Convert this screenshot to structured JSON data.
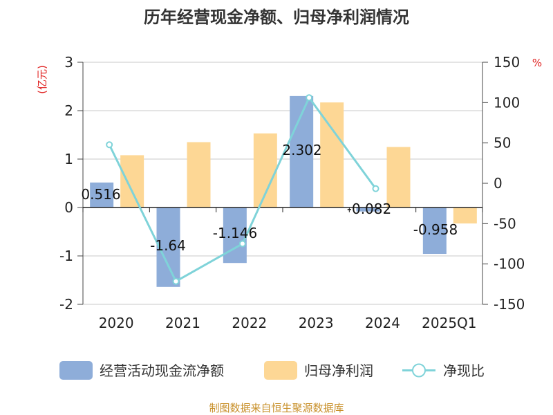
{
  "colors": {
    "bar1": "#8eadd9",
    "bar2": "#fdd795",
    "line": "#7fd3d9",
    "unit": "#e0201f",
    "source": "#c8902a"
  },
  "chart_data": {
    "type": "bar",
    "title": "历年经营现金净额、归母净利润情况",
    "ylabel_left": "(亿元)",
    "ylabel_right": "%",
    "categories": [
      "2020",
      "2021",
      "2022",
      "2023",
      "2024",
      "2025Q1"
    ],
    "ylim_left": [
      -2,
      3
    ],
    "ylim_right": [
      -150,
      150
    ],
    "yticks_left": [
      "3",
      "2",
      "1",
      "0",
      "-1",
      "-2"
    ],
    "yticks_right": [
      "150",
      "100",
      "50",
      "0",
      "-50",
      "-100",
      "-150"
    ],
    "grid": true,
    "legend_position": "bottom",
    "series": [
      {
        "name": "经营活动现金流净额",
        "type": "bar",
        "axis": "left",
        "values": [
          0.516,
          -1.64,
          -1.146,
          2.302,
          -0.082,
          -0.958
        ],
        "labels": [
          "0.516",
          "-1.64",
          "-1.146",
          "2.302",
          "-0.082",
          "-0.958"
        ]
      },
      {
        "name": "归母净利润",
        "type": "bar",
        "axis": "left",
        "values": [
          1.08,
          1.35,
          1.53,
          2.17,
          1.25,
          -0.33
        ]
      },
      {
        "name": "净现比",
        "type": "line",
        "axis": "right",
        "values": [
          47.8,
          -121.5,
          -74.9,
          106.1,
          -6.6,
          null
        ]
      }
    ]
  },
  "source_text": "制图数据来自恒生聚源数据库"
}
